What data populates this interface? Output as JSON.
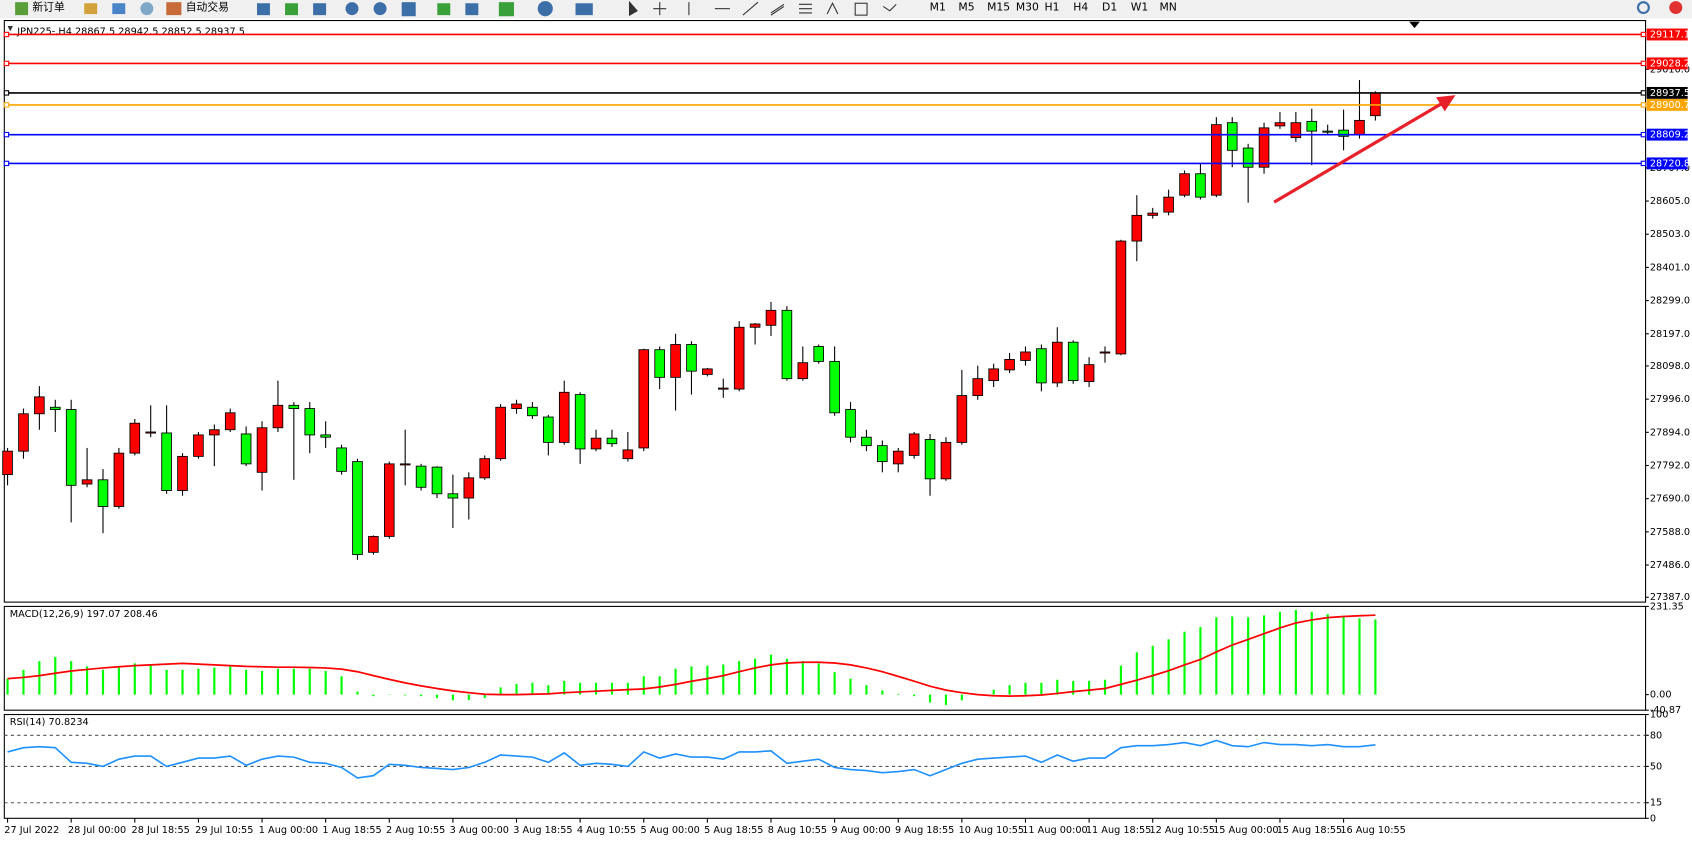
{
  "toolbar": {
    "new_order": "新订单",
    "auto_trading": "自动交易",
    "timeframes": [
      "M1",
      "M5",
      "M15",
      "M30",
      "H1",
      "H4",
      "D1",
      "W1",
      "MN"
    ]
  },
  "chart_data": [
    {
      "type": "candlestick",
      "title": "JPN225-,H4  28867.5 28942.5 28852.5 28937.5",
      "categories": [
        "27 Jul 2022",
        null,
        null,
        null,
        "28 Jul 00:00",
        null,
        null,
        null,
        "28 Jul 18:55",
        null,
        null,
        null,
        "29 Jul 10:55",
        null,
        null,
        null,
        "1 Aug 00:00",
        null,
        null,
        null,
        "1 Aug 18:55",
        null,
        null,
        null,
        "2 Aug 10:55",
        null,
        null,
        null,
        "3 Aug 00:00",
        null,
        null,
        null,
        "3 Aug 18:55",
        null,
        null,
        null,
        "4 Aug 10:55",
        null,
        null,
        null,
        "5 Aug 00:00",
        null,
        null,
        null,
        "5 Aug 18:55",
        null,
        null,
        null,
        "8 Aug 10:55",
        null,
        null,
        null,
        "9 Aug 00:00",
        null,
        null,
        null,
        "9 Aug 18:55",
        null,
        null,
        null,
        "10 Aug 10:55",
        null,
        null,
        null,
        "11 Aug 00:00",
        null,
        null,
        null,
        "11 Aug 18:55",
        null,
        null,
        null,
        "12 Aug 10:55",
        null,
        null,
        null,
        "15 Aug 00:00",
        null,
        null,
        null,
        "15 Aug 18:55",
        null,
        null,
        null,
        "16 Aug 10:55",
        null,
        null
      ],
      "open": [
        27764,
        27836,
        27951,
        27971,
        27964,
        27735,
        27748,
        27666,
        27830,
        27892,
        27892,
        27715,
        27820,
        27886,
        27902,
        27889,
        27771,
        27908,
        27977,
        27967,
        27886,
        27846,
        27804,
        27525,
        27574,
        27794,
        27790,
        27787,
        27705,
        27692,
        27754,
        27813,
        27967,
        27971,
        27941,
        27863,
        28010,
        27843,
        27876,
        27813,
        27846,
        28148,
        28063,
        28164,
        28072,
        28027,
        28027,
        28217,
        28223,
        28269,
        28059,
        28158,
        28112,
        27964,
        27879,
        27853,
        27797,
        27823,
        27872,
        27751,
        27863,
        28007,
        28053,
        28086,
        28115,
        28151,
        28046,
        28171,
        28050,
        28138,
        28135,
        28482,
        28561,
        28571,
        28623,
        28689,
        28623,
        28846,
        28768,
        28709,
        28836,
        28800,
        28850,
        28820,
        28823,
        28810,
        28867.5
      ],
      "high": [
        27846,
        27967,
        28036,
        27994,
        27994,
        27846,
        27781,
        27846,
        27935,
        27977,
        27977,
        27830,
        27895,
        27918,
        27967,
        27912,
        27928,
        28053,
        27987,
        27987,
        27928,
        27856,
        27813,
        27577,
        27804,
        27902,
        27797,
        27790,
        27764,
        27771,
        27823,
        27981,
        27994,
        27987,
        27948,
        28053,
        28017,
        27902,
        27902,
        27895,
        28151,
        28158,
        28197,
        28174,
        28092,
        28059,
        28236,
        28230,
        28295,
        28282,
        28158,
        28164,
        28158,
        27987,
        27902,
        27869,
        27846,
        27895,
        27889,
        27879,
        28086,
        28099,
        28105,
        28138,
        28158,
        28164,
        28217,
        28177,
        28125,
        28158,
        28486,
        28623,
        28584,
        28640,
        28699,
        28722,
        28863,
        28863,
        28781,
        28846,
        28879,
        28879,
        28889,
        28840,
        28886,
        28977,
        28942.5
      ],
      "low": [
        27731,
        27813,
        27902,
        27895,
        27617,
        27725,
        27584,
        27659,
        27823,
        27879,
        27705,
        27699,
        27813,
        27790,
        27895,
        27790,
        27715,
        27895,
        27748,
        27830,
        27846,
        27764,
        27502,
        27518,
        27567,
        27731,
        27715,
        27692,
        27600,
        27626,
        27748,
        27807,
        27951,
        27935,
        27823,
        27856,
        27797,
        27836,
        27849,
        27804,
        27836,
        28027,
        27961,
        28010,
        28066,
        28000,
        28020,
        28164,
        28190,
        28053,
        28053,
        28105,
        27945,
        27863,
        27836,
        27771,
        27771,
        27813,
        27699,
        27745,
        27856,
        27994,
        28033,
        28076,
        28099,
        28020,
        28033,
        28043,
        28033,
        28108,
        28131,
        28420,
        28551,
        28561,
        28617,
        28610,
        28617,
        28709,
        28600,
        28689,
        28827,
        28787,
        28715,
        28807,
        28761,
        28797,
        28852.5
      ],
      "close": [
        27836,
        27951,
        28003,
        27964,
        27731,
        27748,
        27666,
        27830,
        27922,
        27895,
        27715,
        27820,
        27886,
        27902,
        27954,
        27797,
        27908,
        27977,
        27967,
        27886,
        27879,
        27774,
        27518,
        27574,
        27797,
        27797,
        27725,
        27705,
        27692,
        27754,
        27813,
        27971,
        27981,
        27945,
        27863,
        28017,
        27843,
        27876,
        27859,
        27840,
        28148,
        28063,
        28164,
        28082,
        28089,
        28030,
        28217,
        28227,
        28269,
        28059,
        28108,
        28112,
        27954,
        27879,
        27853,
        27804,
        27836,
        27889,
        27751,
        27863,
        28007,
        28059,
        28089,
        28118,
        28141,
        28046,
        28171,
        28053,
        28102,
        28141,
        28482,
        28561,
        28568,
        28617,
        28689,
        28617,
        28840,
        28761,
        28709,
        28830,
        28846,
        28846,
        28820,
        28817,
        28804,
        28853,
        28937.5
      ],
      "up_color": "#ff0000",
      "down_color": "#00ff00",
      "ylim": [
        27372,
        29160
      ],
      "yticks": [
        {
          "value": 27387,
          "label": "27387.0"
        },
        {
          "value": 27486,
          "label": "27486.0"
        },
        {
          "value": 27588,
          "label": "27588.0"
        },
        {
          "value": 27690,
          "label": "27690.0"
        },
        {
          "value": 27792,
          "label": "27792.0"
        },
        {
          "value": 27894,
          "label": "27894.0"
        },
        {
          "value": 27996,
          "label": "27996.0"
        },
        {
          "value": 28098,
          "label": "28098.0"
        },
        {
          "value": 28197,
          "label": "28197.0"
        },
        {
          "value": 28299,
          "label": "28299.0"
        },
        {
          "value": 28401,
          "label": "28401.0"
        },
        {
          "value": 28503,
          "label": "28503.0"
        },
        {
          "value": 28605,
          "label": "28605.0"
        },
        {
          "value": 28707,
          "label": "28707.0"
        },
        {
          "value": 29010,
          "label": "29010.0"
        }
      ],
      "levels": [
        {
          "value": 29117.1,
          "color": "#ff0000"
        },
        {
          "value": 29028.2,
          "color": "#ff0000"
        },
        {
          "value": 28937.5,
          "color": "#000000"
        },
        {
          "value": 28900.7,
          "color": "#ffa500"
        },
        {
          "value": 28809.2,
          "color": "#0000ff"
        },
        {
          "value": 28720.8,
          "color": "#0000ff"
        }
      ]
    },
    {
      "type": "macd",
      "title": "MACD(12,26,9) 197.07 208.46",
      "values": [
        42,
        65,
        88,
        99,
        88,
        74,
        65,
        71,
        82,
        79,
        65,
        65,
        68,
        71,
        76,
        65,
        62,
        68,
        68,
        68,
        62,
        48,
        8,
        -4,
        -1,
        -2,
        -4,
        -9,
        -15,
        -14,
        -9,
        19,
        28,
        31,
        25,
        36,
        31,
        31,
        31,
        31,
        48,
        48,
        68,
        74,
        76,
        79,
        88,
        94,
        105,
        94,
        88,
        82,
        59,
        42,
        25,
        11,
        2,
        -4,
        -21,
        -27,
        -15,
        -1,
        13,
        25,
        31,
        31,
        39,
        36,
        36,
        39,
        76,
        111,
        128,
        145,
        165,
        177,
        203,
        205,
        203,
        208,
        217,
        222,
        217,
        211,
        205,
        200,
        197.07
      ],
      "color": "#00ff00",
      "signal": [
        42,
        45,
        50,
        56,
        62,
        66,
        70,
        73,
        76,
        78,
        80,
        82,
        80,
        78,
        76,
        74,
        73,
        72,
        72,
        71,
        70,
        67,
        60,
        50,
        40,
        31,
        23,
        16,
        10,
        5,
        1,
        0,
        0,
        1,
        2,
        5,
        7,
        9,
        11,
        13,
        15,
        20,
        27,
        35,
        42,
        50,
        60,
        70,
        78,
        83,
        85,
        85,
        83,
        78,
        70,
        60,
        48,
        35,
        22,
        12,
        5,
        0,
        -3,
        -4,
        -3,
        -1,
        3,
        8,
        12,
        16,
        27,
        38,
        50,
        63,
        78,
        92,
        112,
        130,
        145,
        160,
        175,
        188,
        196,
        202,
        205,
        207,
        208.46
      ],
      "signal_color": "#ff0000",
      "ylim": [
        -40.87,
        231.35
      ],
      "yticks": [
        -40.87,
        {
          "value": 0,
          "label": "0.00"
        },
        231.35
      ]
    },
    {
      "type": "line",
      "title": "RSI(14) 70.8234",
      "values": [
        64,
        68,
        69,
        68,
        54,
        53,
        50,
        57,
        60,
        60,
        50,
        54,
        58,
        58,
        60,
        51,
        57,
        60,
        59,
        54,
        53,
        49,
        39,
        41,
        52,
        51,
        49,
        48,
        47,
        49,
        54,
        61,
        60,
        59,
        54,
        63,
        51,
        53,
        52,
        50,
        64,
        58,
        62,
        59,
        59,
        57,
        64,
        64,
        65,
        53,
        55,
        57,
        49,
        47,
        46,
        44,
        45,
        47,
        41,
        47,
        53,
        57,
        58,
        59,
        60,
        54,
        61,
        55,
        58,
        58,
        68,
        70,
        70,
        71,
        73,
        70,
        75,
        70,
        69,
        73,
        71,
        71,
        70,
        71,
        69,
        69,
        70.8234
      ],
      "color": "#1e90ff",
      "ylim": [
        0,
        100
      ],
      "yticks": [
        0,
        15,
        50,
        80,
        100
      ]
    }
  ]
}
